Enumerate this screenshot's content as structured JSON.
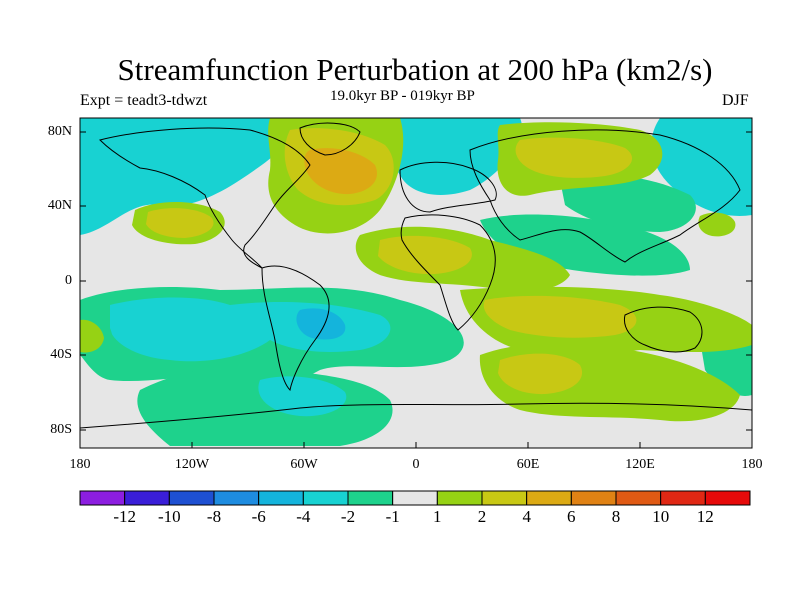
{
  "title": "Streamfunction Perturbation at 200 hPa (km2/s)",
  "experiment": "Expt = teadt3-tdwzt",
  "period": "19.0kyr BP - 019kyr BP",
  "season": "DJF",
  "lat_labels": [
    "80N",
    "40N",
    "0",
    "40S",
    "80S"
  ],
  "lon_labels": [
    "180",
    "120W",
    "60W",
    "0",
    "60E",
    "120E",
    "180"
  ],
  "colorbar": {
    "labels": [
      "-12",
      "-10",
      "-8",
      "-6",
      "-4",
      "-2",
      "-1",
      "1",
      "2",
      "4",
      "6",
      "8",
      "10",
      "12"
    ],
    "colors": [
      "#8c1ee0",
      "#3a1ed8",
      "#1e50d2",
      "#1e8ce0",
      "#14b4dc",
      "#18d2d2",
      "#1ed28c",
      "#e6e6e6",
      "#96d214",
      "#c8c814",
      "#dcaa14",
      "#e08214",
      "#e05a14",
      "#e02814",
      "#e60a0a"
    ]
  }
}
